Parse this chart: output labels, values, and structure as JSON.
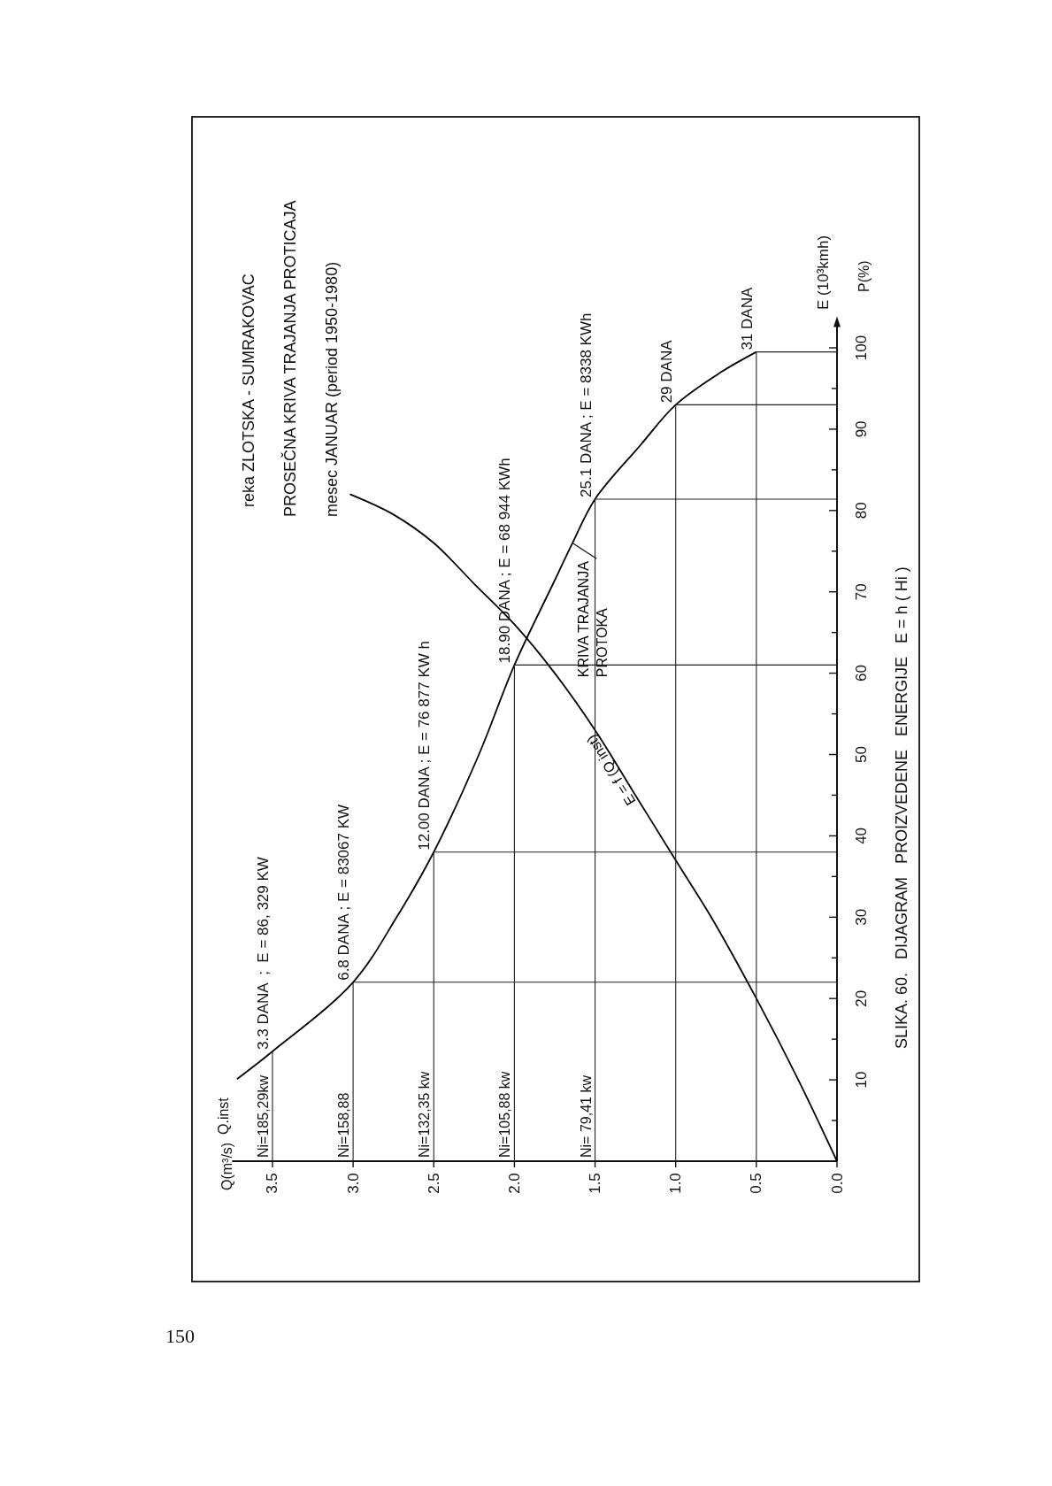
{
  "chart_data": {
    "type": "line",
    "title": "reka ZLOTSKA - SUMRAKOVAC",
    "subtitle": "PROSEČNA KRIVA TRAJANJA PROTICAJA",
    "ylabel": "P(%)",
    "annotations": [
      "mesec JANUAR (period 1950-1980)",
      "E (10³kmh)",
      "Q.inst",
      "SLIKA. 60.   DIJAGRAM   PROIZVEDENE   ENERGIJE   E = h ( Hi )",
      "150",
      "Ni=185,29kw",
      "Ni=158,88",
      "Ni=132,35 kw",
      "Ni=105,88 kw",
      "Ni= 79,41 kw",
      "Q(m³/s)",
      {
        "text": "3.3 DANA  ;  E = 86, 329 KW",
        "x": 3.5,
        "y": 13.5
      },
      {
        "text": "6.8 DANA ; E = 83067 KW",
        "x": 3.0,
        "y": 22
      },
      {
        "text": "12.00 DANA ; E = 76 877 KW h",
        "x": 2.5,
        "y": 38
      },
      {
        "text": "18.90 DANA ; E = 68 944 KWh",
        "x": 2.0,
        "y": 61
      },
      {
        "text": "25.1 DANA ; E = 8338 KWh",
        "x": 1.5,
        "y": 81.4
      },
      {
        "text": "29 DANA",
        "x": 1.0,
        "y": 93
      },
      {
        "text": "31 DANA",
        "x": 0.5,
        "y": 99.5
      }
    ],
    "series": [
      {
        "name": "KRIVA TRAJANJA PROTOKA",
        "color": "#000000",
        "x": [
          3.72,
          3.5,
          3.0,
          2.73,
          2.5,
          2.22,
          2.0,
          1.76,
          1.64,
          1.5,
          1.22,
          1.0,
          0.72,
          0.5
        ],
        "values": [
          10.1,
          13.5,
          22,
          30,
          38,
          50,
          61,
          71,
          76,
          81.4,
          88,
          93,
          97,
          99.5
        ]
      },
      {
        "name": "E = f (Q inst)",
        "color": "#000000",
        "x": [
          0,
          0.24,
          0.5,
          0.78,
          1.0,
          1.25,
          1.5,
          1.75,
          2.0,
          2.25,
          2.5,
          2.75,
          3.02
        ],
        "values": [
          0,
          10,
          20,
          30,
          37,
          45,
          53,
          60,
          66,
          71,
          76,
          79.5,
          82
        ]
      },
      {
        "color": "#222222",
        "x": [
          3.5,
          3.5
        ],
        "values": [
          13.5,
          0
        ]
      },
      {
        "color": "#222222",
        "x": [
          0,
          3.0,
          3.0
        ],
        "values": [
          22,
          22,
          0
        ]
      },
      {
        "color": "#222222",
        "x": [
          0,
          2.5,
          2.5
        ],
        "values": [
          38,
          38,
          0
        ]
      },
      {
        "color": "#222222",
        "x": [
          0,
          2.0,
          2.0
        ],
        "values": [
          61,
          61,
          0
        ]
      },
      {
        "color": "#222222",
        "x": [
          0,
          1.5,
          1.5
        ],
        "values": [
          81.4,
          81.4,
          0
        ]
      },
      {
        "color": "#222222",
        "x": [
          0,
          1.0,
          1.0
        ],
        "values": [
          93,
          93,
          0
        ]
      },
      {
        "color": "#222222",
        "x": [
          0,
          0.5,
          0.5
        ],
        "values": [
          99.5,
          99.5,
          0
        ]
      }
    ],
    "xlim": [
      3.75,
      0
    ],
    "xticks": [
      {
        "value": 0,
        "label": "0.0"
      },
      0.5,
      {
        "value": 1,
        "label": "1.0"
      },
      1.5,
      {
        "value": 2,
        "label": "2.0"
      },
      2.5,
      {
        "value": 3,
        "label": "3.0"
      },
      3.5
    ],
    "ylim": [
      0,
      103
    ],
    "yticks": [
      {
        "value": 5,
        "label": null
      },
      10,
      {
        "value": 15,
        "label": null
      },
      20,
      {
        "value": 25,
        "label": null
      },
      30,
      {
        "value": 35,
        "label": null
      },
      40,
      {
        "value": 45,
        "label": null
      },
      50,
      {
        "value": 55,
        "label": null
      },
      60,
      {
        "value": 65,
        "label": null
      },
      70,
      {
        "value": 75,
        "label": null
      },
      80,
      {
        "value": 85,
        "label": null
      },
      90,
      {
        "value": 95,
        "label": null
      },
      100
    ],
    "grid": false,
    "marker": "none",
    "line_style": "solid"
  }
}
